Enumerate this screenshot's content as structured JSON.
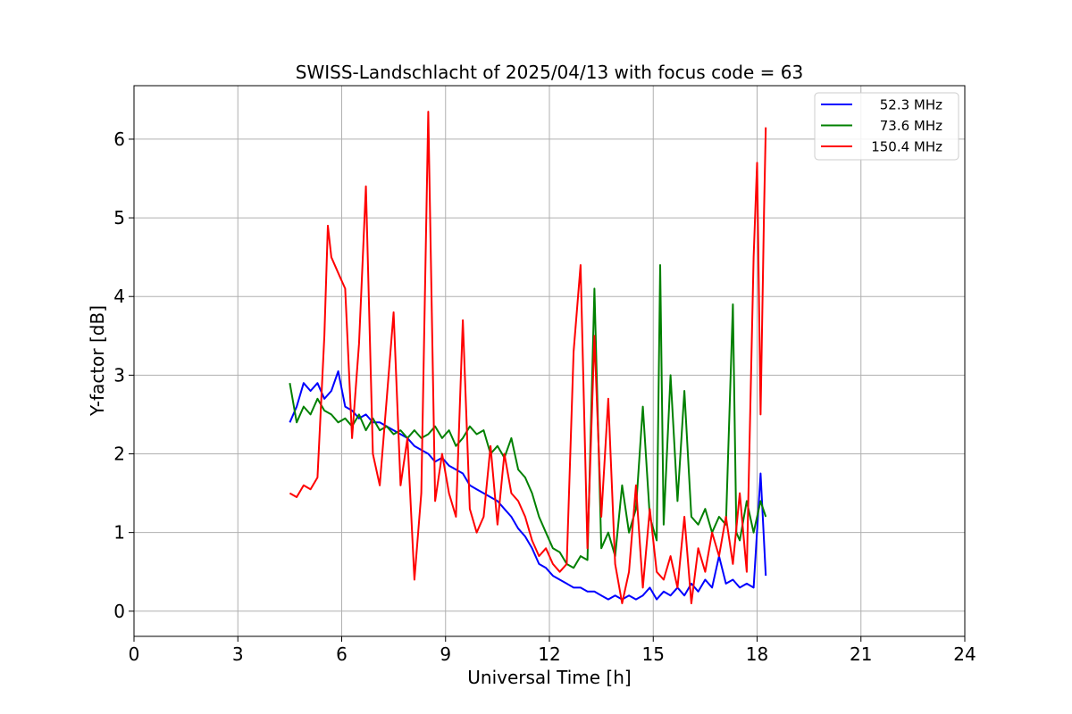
{
  "chart_data": {
    "type": "line",
    "title": "SWISS-Landschlacht of 2025/04/13 with focus code = 63",
    "xlabel": "Universal Time [h]",
    "ylabel": "Y-factor [dB]",
    "xlim": [
      0,
      24
    ],
    "ylim": [
      -0.32,
      6.68
    ],
    "xticks": [
      0,
      3,
      6,
      9,
      12,
      15,
      18,
      21,
      24
    ],
    "yticks": [
      0,
      1,
      2,
      3,
      4,
      5,
      6
    ],
    "grid": true,
    "legend_position": "top-right",
    "series": [
      {
        "name": "52.3 MHz",
        "color": "#0000ff",
        "x": [
          4.5,
          4.7,
          4.9,
          5.1,
          5.3,
          5.5,
          5.7,
          5.9,
          6.1,
          6.3,
          6.5,
          6.7,
          6.9,
          7.1,
          7.3,
          7.5,
          7.7,
          7.9,
          8.1,
          8.3,
          8.5,
          8.7,
          8.9,
          9.1,
          9.3,
          9.5,
          9.7,
          9.9,
          10.1,
          10.3,
          10.5,
          10.7,
          10.9,
          11.1,
          11.3,
          11.5,
          11.7,
          11.9,
          12.1,
          12.3,
          12.5,
          12.7,
          12.9,
          13.1,
          13.3,
          13.5,
          13.7,
          13.9,
          14.1,
          14.3,
          14.5,
          14.7,
          14.9,
          15.1,
          15.3,
          15.5,
          15.7,
          15.9,
          16.1,
          16.3,
          16.5,
          16.7,
          16.9,
          17.1,
          17.3,
          17.5,
          17.7,
          17.9,
          18.1,
          18.25
        ],
        "y": [
          2.4,
          2.6,
          2.9,
          2.8,
          2.9,
          2.7,
          2.8,
          3.05,
          2.6,
          2.55,
          2.45,
          2.5,
          2.4,
          2.4,
          2.35,
          2.3,
          2.25,
          2.2,
          2.1,
          2.05,
          2.0,
          1.9,
          1.95,
          1.85,
          1.8,
          1.75,
          1.6,
          1.55,
          1.5,
          1.45,
          1.4,
          1.3,
          1.2,
          1.05,
          0.95,
          0.8,
          0.6,
          0.55,
          0.45,
          0.4,
          0.35,
          0.3,
          0.3,
          0.25,
          0.25,
          0.2,
          0.15,
          0.2,
          0.15,
          0.2,
          0.15,
          0.2,
          0.3,
          0.15,
          0.25,
          0.2,
          0.3,
          0.2,
          0.35,
          0.25,
          0.4,
          0.3,
          0.7,
          0.35,
          0.4,
          0.3,
          0.35,
          0.3,
          1.75,
          0.45
        ]
      },
      {
        "name": "73.6 MHz",
        "color": "#008000",
        "x": [
          4.5,
          4.7,
          4.9,
          5.1,
          5.3,
          5.5,
          5.7,
          5.9,
          6.1,
          6.3,
          6.5,
          6.7,
          6.9,
          7.1,
          7.3,
          7.5,
          7.7,
          7.9,
          8.1,
          8.3,
          8.5,
          8.7,
          8.9,
          9.1,
          9.3,
          9.5,
          9.7,
          9.9,
          10.1,
          10.3,
          10.5,
          10.7,
          10.9,
          11.1,
          11.3,
          11.5,
          11.7,
          11.9,
          12.1,
          12.3,
          12.5,
          12.7,
          12.9,
          13.1,
          13.3,
          13.5,
          13.7,
          13.9,
          14.1,
          14.3,
          14.5,
          14.7,
          14.9,
          15.1,
          15.2,
          15.3,
          15.5,
          15.7,
          15.9,
          16.1,
          16.3,
          16.5,
          16.7,
          16.9,
          17.1,
          17.3,
          17.4,
          17.5,
          17.7,
          17.9,
          18.1,
          18.25
        ],
        "y": [
          2.9,
          2.4,
          2.6,
          2.5,
          2.7,
          2.55,
          2.5,
          2.4,
          2.45,
          2.35,
          2.5,
          2.3,
          2.45,
          2.3,
          2.35,
          2.25,
          2.3,
          2.2,
          2.3,
          2.2,
          2.25,
          2.35,
          2.2,
          2.3,
          2.1,
          2.2,
          2.35,
          2.25,
          2.3,
          2.0,
          2.1,
          1.95,
          2.2,
          1.8,
          1.7,
          1.5,
          1.2,
          1.0,
          0.8,
          0.75,
          0.6,
          0.55,
          0.7,
          0.65,
          4.1,
          0.8,
          1.0,
          0.7,
          1.6,
          1.0,
          1.3,
          2.6,
          1.2,
          0.9,
          4.4,
          1.1,
          3.0,
          1.4,
          2.8,
          1.2,
          1.1,
          1.3,
          1.0,
          1.2,
          1.1,
          3.9,
          1.0,
          0.9,
          1.4,
          1.0,
          1.4,
          1.2
        ]
      },
      {
        "name": "150.4 MHz",
        "color": "#ff0000",
        "x": [
          4.5,
          4.7,
          4.9,
          5.1,
          5.3,
          5.5,
          5.6,
          5.7,
          5.9,
          6.1,
          6.3,
          6.5,
          6.7,
          6.9,
          7.1,
          7.3,
          7.5,
          7.7,
          7.9,
          8.1,
          8.3,
          8.5,
          8.7,
          8.9,
          9.1,
          9.3,
          9.5,
          9.7,
          9.9,
          10.1,
          10.3,
          10.5,
          10.7,
          10.9,
          11.1,
          11.3,
          11.5,
          11.7,
          11.9,
          12.1,
          12.3,
          12.5,
          12.7,
          12.9,
          13.1,
          13.3,
          13.5,
          13.7,
          13.9,
          14.1,
          14.3,
          14.5,
          14.7,
          14.9,
          15.1,
          15.3,
          15.5,
          15.7,
          15.9,
          16.1,
          16.3,
          16.5,
          16.7,
          16.9,
          17.1,
          17.3,
          17.5,
          17.7,
          17.9,
          18.0,
          18.1,
          18.2,
          18.25
        ],
        "y": [
          1.5,
          1.45,
          1.6,
          1.55,
          1.7,
          3.5,
          4.9,
          4.5,
          4.3,
          4.1,
          2.2,
          3.4,
          5.4,
          2.0,
          1.6,
          2.7,
          3.8,
          1.6,
          2.2,
          0.4,
          1.5,
          6.35,
          1.4,
          2.0,
          1.5,
          1.2,
          3.7,
          1.3,
          1.0,
          1.2,
          2.1,
          1.1,
          2.0,
          1.5,
          1.4,
          1.2,
          0.9,
          0.7,
          0.8,
          0.6,
          0.5,
          0.6,
          3.3,
          4.4,
          0.8,
          3.5,
          1.2,
          2.7,
          0.6,
          0.1,
          0.5,
          1.6,
          0.3,
          1.3,
          0.5,
          0.4,
          0.7,
          0.3,
          1.2,
          0.1,
          0.8,
          0.5,
          1.0,
          0.7,
          1.2,
          0.6,
          1.5,
          0.5,
          4.5,
          5.7,
          2.5,
          5.1,
          6.15
        ]
      }
    ]
  }
}
